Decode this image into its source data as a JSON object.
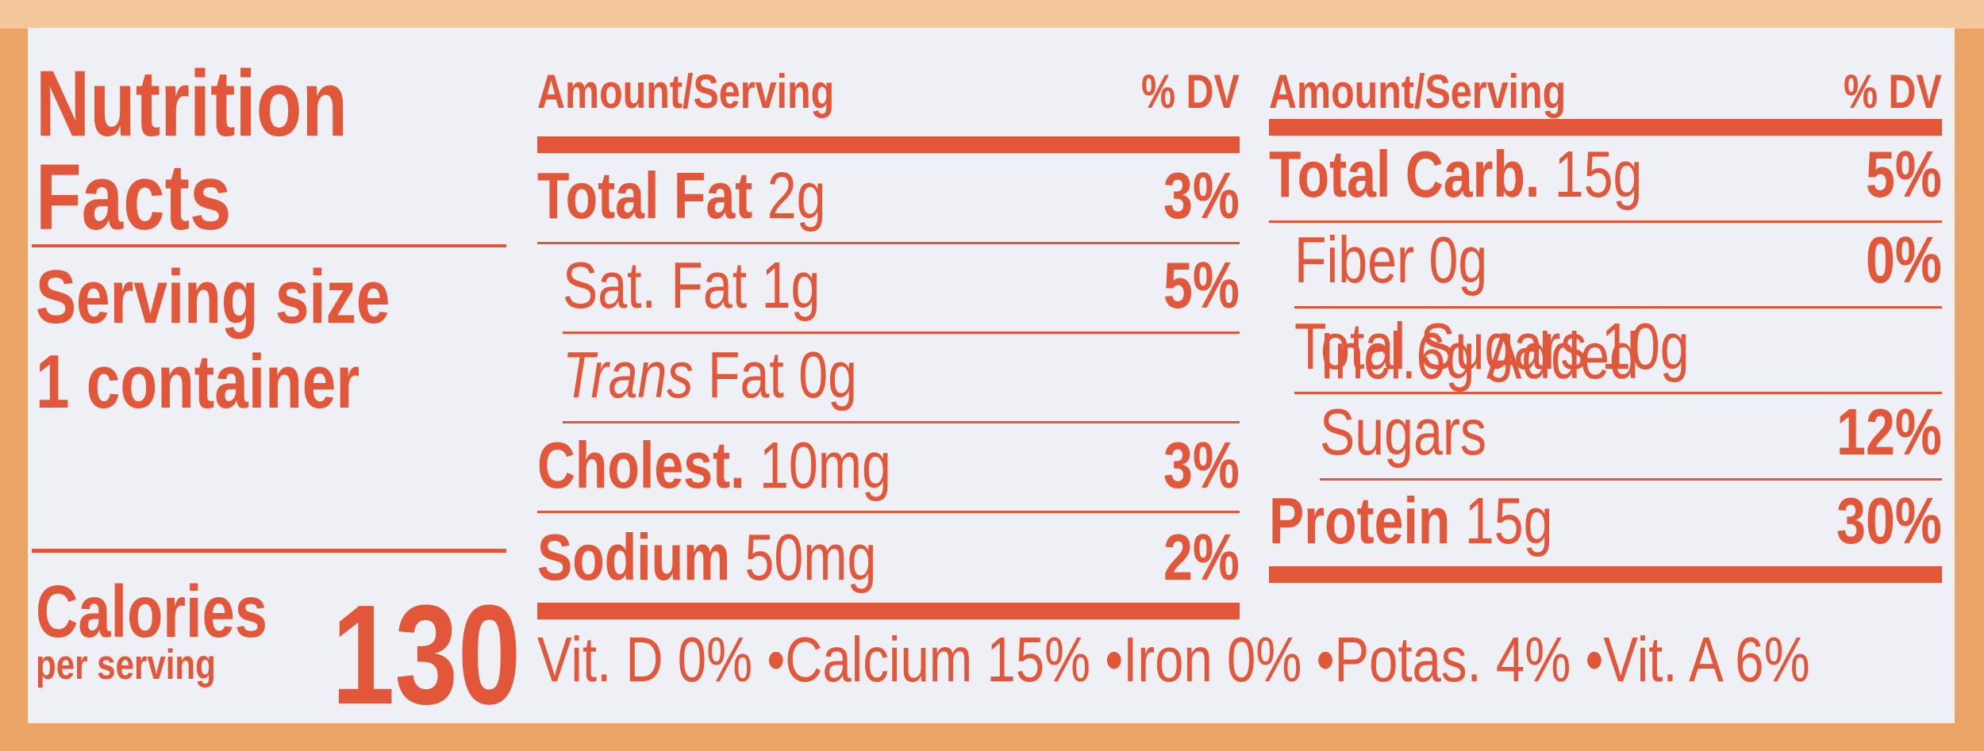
{
  "title": "Nutrition Facts",
  "serving": {
    "label": "Serving size",
    "value": "1 container"
  },
  "calories": {
    "label": "Calories",
    "sublabel": "per serving",
    "value": "130"
  },
  "columns": [
    {
      "header": {
        "amount": "Amount/Serving",
        "dv": "% DV"
      },
      "rows": [
        {
          "name": "Total Fat",
          "amount": "2g",
          "dv": "3%"
        },
        {
          "name": "Sat. Fat",
          "amount": "1g",
          "dv": "5%"
        },
        {
          "prefix": "Trans",
          "name": "Fat",
          "amount": "0g"
        },
        {
          "name": "Cholest.",
          "amount": "10mg",
          "dv": "3%"
        },
        {
          "name": "Sodium",
          "amount": "50mg",
          "dv": "2%"
        }
      ]
    },
    {
      "header": {
        "amount": "Amount/Serving",
        "dv": "% DV"
      },
      "rows": [
        {
          "name": "Total Carb.",
          "amount": "15g",
          "dv": "5%"
        },
        {
          "name": "Fiber",
          "amount": "0g",
          "dv": "0%"
        },
        {
          "name": "Total Sugars",
          "amount": "10g"
        },
        {
          "name": "Incl.6g Added Sugars",
          "dv": "12%"
        },
        {
          "name": "Protein",
          "amount": "15g",
          "dv": "30%"
        }
      ]
    }
  ],
  "footer": [
    "Vit. D 0%",
    "Calcium 15%",
    "Iron 0%",
    "Potas. 4%",
    "Vit. A 6%"
  ]
}
